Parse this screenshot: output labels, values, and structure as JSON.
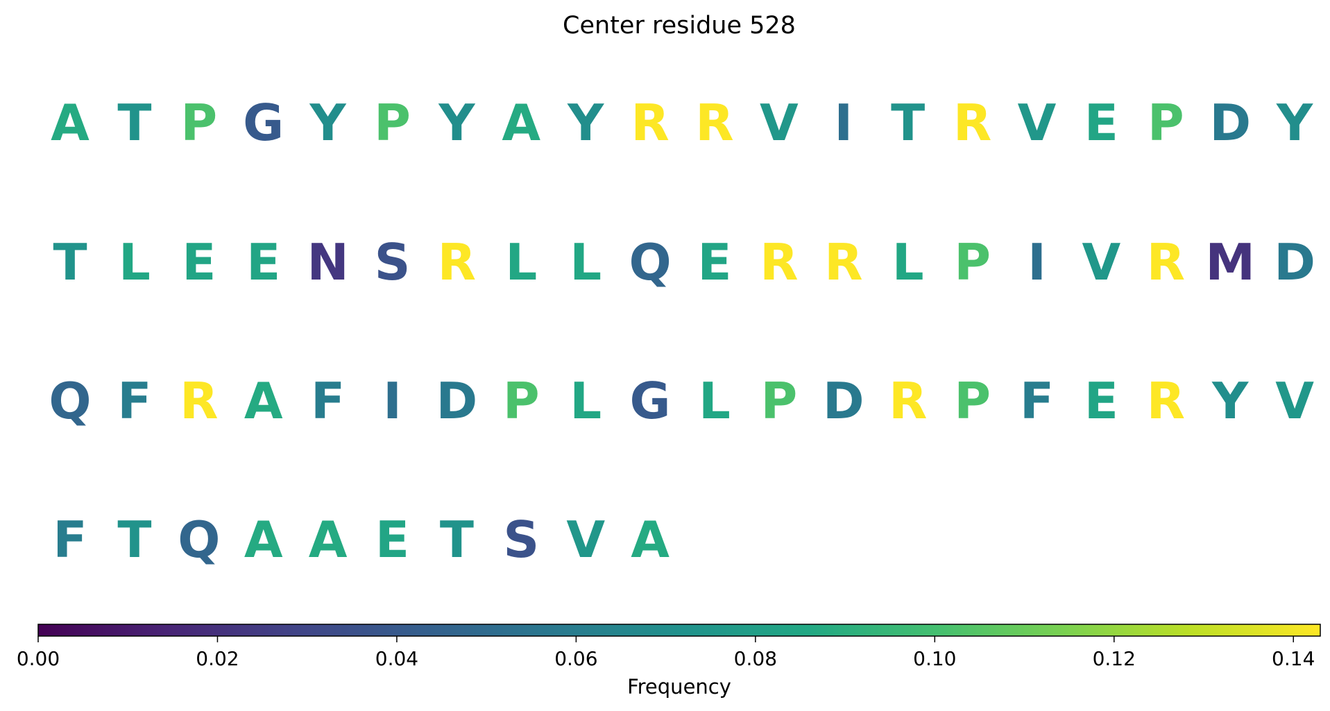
{
  "chart_data": {
    "type": "heatmap",
    "title": "Center residue 528",
    "residues": [
      [
        "A",
        "T",
        "P",
        "G",
        "Y",
        "P",
        "Y",
        "A",
        "Y",
        "R",
        "R",
        "V",
        "I",
        "T",
        "R",
        "V",
        "E",
        "P",
        "D",
        "Y"
      ],
      [
        "T",
        "L",
        "E",
        "E",
        "N",
        "S",
        "R",
        "L",
        "L",
        "Q",
        "E",
        "R",
        "R",
        "L",
        "P",
        "I",
        "V",
        "R",
        "M",
        "D"
      ],
      [
        "Q",
        "F",
        "R",
        "A",
        "F",
        "I",
        "D",
        "P",
        "L",
        "G",
        "L",
        "P",
        "D",
        "R",
        "P",
        "F",
        "E",
        "R",
        "Y",
        "V"
      ],
      [
        "F",
        "T",
        "Q",
        "A",
        "A",
        "E",
        "T",
        "S",
        "V",
        "A"
      ]
    ],
    "frequencies": {
      "A": 0.087,
      "T": 0.073,
      "P": 0.102,
      "G": 0.04,
      "Y": 0.07,
      "R": 0.143,
      "V": 0.075,
      "I": 0.052,
      "E": 0.084,
      "D": 0.058,
      "L": 0.085,
      "N": 0.023,
      "S": 0.036,
      "Q": 0.047,
      "M": 0.021,
      "F": 0.06
    },
    "colorbar": {
      "label": "Frequency",
      "range": [
        0,
        0.143
      ],
      "ticks": [
        "0.00",
        "0.02",
        "0.04",
        "0.06",
        "0.08",
        "0.10",
        "0.12",
        "0.14"
      ],
      "colormap": "viridis"
    }
  }
}
